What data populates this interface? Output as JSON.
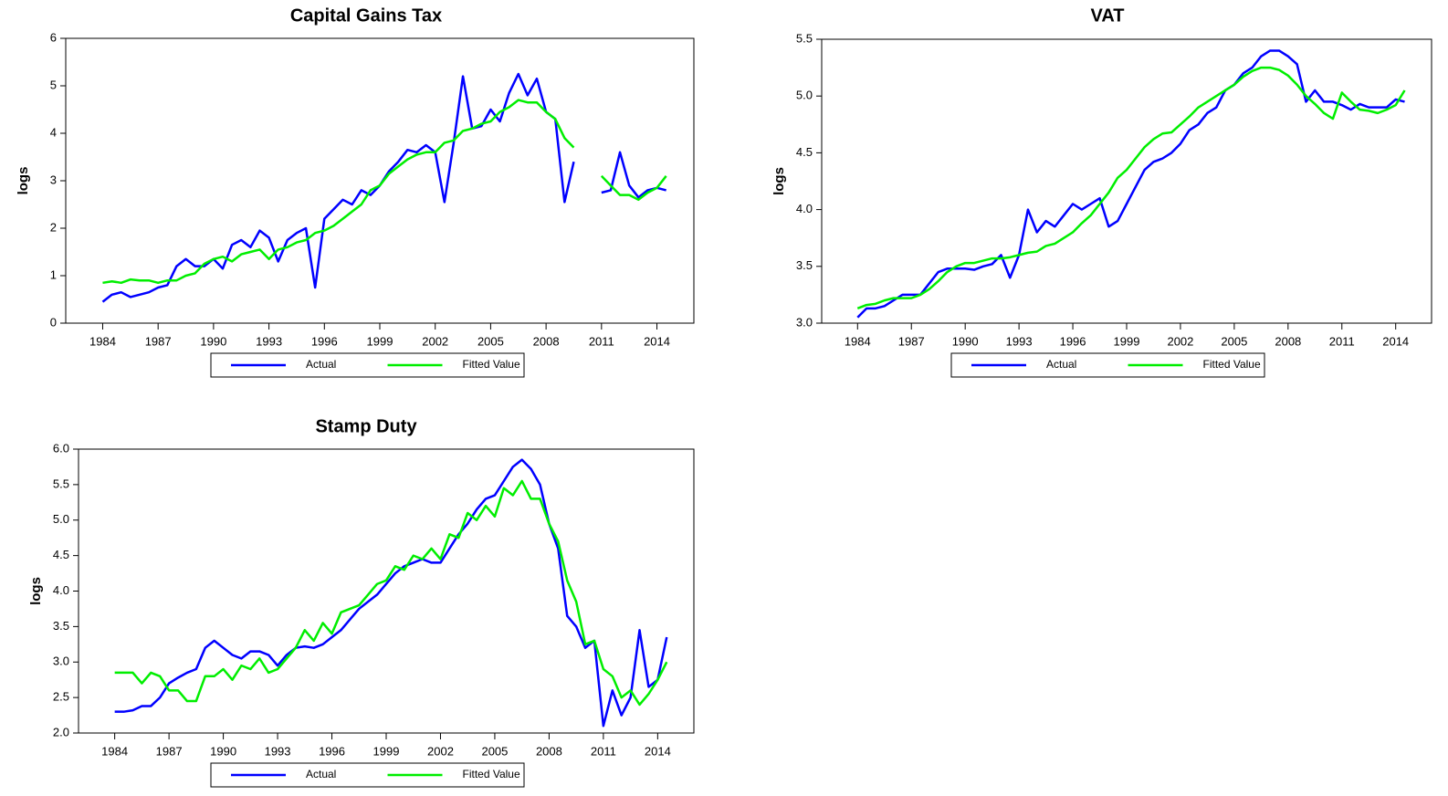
{
  "chart_data": [
    {
      "type": "line",
      "title": "Capital Gains Tax",
      "y_label": "logs",
      "legend": "bottom",
      "x": [
        1984,
        1984.5,
        1985,
        1985.5,
        1986,
        1986.5,
        1987,
        1987.5,
        1988,
        1988.5,
        1989,
        1989.5,
        1990,
        1990.5,
        1991,
        1991.5,
        1992,
        1992.5,
        1993,
        1993.5,
        1994,
        1994.5,
        1995,
        1995.5,
        1996,
        1996.5,
        1997,
        1997.5,
        1998,
        1998.5,
        1999,
        1999.5,
        2000,
        2000.5,
        2001,
        2001.5,
        2002,
        2002.5,
        2003,
        2003.5,
        2004,
        2004.5,
        2005,
        2005.5,
        2006,
        2006.5,
        2007,
        2007.5,
        2008,
        2008.5,
        2009,
        2009.5,
        2010,
        2010.5,
        2011,
        2011.5,
        2012,
        2012.5,
        2013,
        2013.5,
        2014,
        2014.5
      ],
      "series": [
        {
          "name": "Actual",
          "color": "#0000ff",
          "values": [
            0.45,
            0.6,
            0.65,
            0.55,
            0.6,
            0.65,
            0.75,
            0.8,
            1.2,
            1.35,
            1.2,
            1.2,
            1.35,
            1.15,
            1.65,
            1.75,
            1.6,
            1.95,
            1.8,
            1.3,
            1.75,
            1.9,
            2.0,
            0.75,
            2.2,
            2.4,
            2.6,
            2.5,
            2.8,
            2.7,
            2.9,
            3.2,
            3.4,
            3.65,
            3.6,
            3.75,
            3.6,
            2.55,
            3.8,
            5.2,
            4.1,
            4.15,
            4.5,
            4.25,
            4.85,
            5.25,
            4.8,
            5.15,
            4.45,
            4.3,
            2.55,
            3.4,
            null,
            null,
            2.75,
            2.8,
            3.6,
            2.9,
            2.65,
            2.8,
            2.85,
            2.8
          ]
        },
        {
          "name": "Fitted Value",
          "color": "#00ee00",
          "values": [
            0.85,
            0.88,
            0.85,
            0.92,
            0.9,
            0.9,
            0.85,
            0.9,
            0.9,
            1.0,
            1.05,
            1.25,
            1.35,
            1.4,
            1.3,
            1.45,
            1.5,
            1.55,
            1.35,
            1.55,
            1.6,
            1.7,
            1.75,
            1.9,
            1.95,
            2.05,
            2.2,
            2.35,
            2.5,
            2.8,
            2.9,
            3.15,
            3.3,
            3.45,
            3.55,
            3.6,
            3.6,
            3.8,
            3.85,
            4.05,
            4.1,
            4.2,
            4.25,
            4.45,
            4.55,
            4.7,
            4.65,
            4.65,
            4.45,
            4.3,
            3.9,
            3.7,
            null,
            null,
            3.1,
            2.9,
            2.7,
            2.7,
            2.6,
            2.75,
            2.85,
            3.1
          ]
        }
      ],
      "xlim": [
        1982,
        2016
      ],
      "xticks": [
        1984,
        1987,
        1990,
        1993,
        1996,
        1999,
        2002,
        2005,
        2008,
        2011,
        2014
      ],
      "ylim": [
        0,
        6
      ],
      "yticks": [
        0,
        1,
        2,
        3,
        4,
        5,
        6
      ]
    },
    {
      "type": "line",
      "title": "VAT",
      "y_label": "logs",
      "legend": "bottom",
      "x": [
        1984,
        1984.5,
        1985,
        1985.5,
        1986,
        1986.5,
        1987,
        1987.5,
        1988,
        1988.5,
        1989,
        1989.5,
        1990,
        1990.5,
        1991,
        1991.5,
        1992,
        1992.5,
        1993,
        1993.5,
        1994,
        1994.5,
        1995,
        1995.5,
        1996,
        1996.5,
        1997,
        1997.5,
        1998,
        1998.5,
        1999,
        1999.5,
        2000,
        2000.5,
        2001,
        2001.5,
        2002,
        2002.5,
        2003,
        2003.5,
        2004,
        2004.5,
        2005,
        2005.5,
        2006,
        2006.5,
        2007,
        2007.5,
        2008,
        2008.5,
        2009,
        2009.5,
        2010,
        2010.5,
        2011,
        2011.5,
        2012,
        2012.5,
        2013,
        2013.5,
        2014,
        2014.5
      ],
      "series": [
        {
          "name": "Actual",
          "color": "#0000ff",
          "values": [
            3.05,
            3.13,
            3.13,
            3.15,
            3.2,
            3.25,
            3.25,
            3.25,
            3.35,
            3.45,
            3.48,
            3.48,
            3.48,
            3.47,
            3.5,
            3.52,
            3.6,
            3.4,
            3.6,
            4.0,
            3.8,
            3.9,
            3.85,
            3.95,
            4.05,
            4.0,
            4.05,
            4.1,
            3.85,
            3.9,
            4.05,
            4.2,
            4.35,
            4.42,
            4.45,
            4.5,
            4.58,
            4.7,
            4.75,
            4.85,
            4.9,
            5.05,
            5.1,
            5.2,
            5.25,
            5.35,
            5.4,
            5.4,
            5.35,
            5.28,
            4.95,
            5.05,
            4.95,
            4.95,
            4.92,
            4.88,
            4.93,
            4.9,
            4.9,
            4.9,
            4.97,
            4.95
          ]
        },
        {
          "name": "Fitted Value",
          "color": "#00ee00",
          "values": [
            3.13,
            3.16,
            3.17,
            3.2,
            3.22,
            3.22,
            3.22,
            3.25,
            3.3,
            3.37,
            3.45,
            3.5,
            3.53,
            3.53,
            3.55,
            3.57,
            3.57,
            3.58,
            3.6,
            3.62,
            3.63,
            3.68,
            3.7,
            3.75,
            3.8,
            3.88,
            3.95,
            4.05,
            4.15,
            4.28,
            4.35,
            4.45,
            4.55,
            4.62,
            4.67,
            4.68,
            4.75,
            4.82,
            4.9,
            4.95,
            5.0,
            5.05,
            5.1,
            5.17,
            5.22,
            5.25,
            5.25,
            5.23,
            5.18,
            5.1,
            5.0,
            4.93,
            4.85,
            4.8,
            5.03,
            4.95,
            4.88,
            4.87,
            4.85,
            4.88,
            4.92,
            5.05
          ]
        }
      ],
      "xlim": [
        1982,
        2016
      ],
      "xticks": [
        1984,
        1987,
        1990,
        1993,
        1996,
        1999,
        2002,
        2005,
        2008,
        2011,
        2014
      ],
      "ylim": [
        3,
        5.5
      ],
      "yticks": [
        {
          "value": 3,
          "label": "3.0"
        },
        3.5,
        {
          "value": 4,
          "label": "4.0"
        },
        4.5,
        {
          "value": 5,
          "label": "5.0"
        },
        5.5
      ]
    },
    {
      "type": "line",
      "title": "Stamp Duty",
      "y_label": "logs",
      "legend": "bottom",
      "x": [
        1984,
        1984.5,
        1985,
        1985.5,
        1986,
        1986.5,
        1987,
        1987.5,
        1988,
        1988.5,
        1989,
        1989.5,
        1990,
        1990.5,
        1991,
        1991.5,
        1992,
        1992.5,
        1993,
        1993.5,
        1994,
        1994.5,
        1995,
        1995.5,
        1996,
        1996.5,
        1997,
        1997.5,
        1998,
        1998.5,
        1999,
        1999.5,
        2000,
        2000.5,
        2001,
        2001.5,
        2002,
        2002.5,
        2003,
        2003.5,
        2004,
        2004.5,
        2005,
        2005.5,
        2006,
        2006.5,
        2007,
        2007.5,
        2008,
        2008.5,
        2009,
        2009.5,
        2010,
        2010.5,
        2011,
        2011.5,
        2012,
        2012.5,
        2013,
        2013.5,
        2014,
        2014.5
      ],
      "series": [
        {
          "name": "Actual",
          "color": "#0000ff",
          "values": [
            2.3,
            2.3,
            2.32,
            2.38,
            2.38,
            2.5,
            2.7,
            2.78,
            2.85,
            2.9,
            3.2,
            3.3,
            3.2,
            3.1,
            3.05,
            3.15,
            3.15,
            3.1,
            2.95,
            3.1,
            3.2,
            3.22,
            3.2,
            3.25,
            3.35,
            3.45,
            3.6,
            3.75,
            3.85,
            3.95,
            4.1,
            4.25,
            4.35,
            4.4,
            4.45,
            4.4,
            4.4,
            4.6,
            4.8,
            4.95,
            5.15,
            5.3,
            5.35,
            5.55,
            5.75,
            5.85,
            5.72,
            5.5,
            4.95,
            4.6,
            3.65,
            3.5,
            3.2,
            3.3,
            2.1,
            2.6,
            2.25,
            2.5,
            3.45,
            2.65,
            2.75,
            3.35
          ]
        },
        {
          "name": "Fitted Value",
          "color": "#00ee00",
          "values": [
            2.85,
            2.85,
            2.85,
            2.7,
            2.85,
            2.8,
            2.6,
            2.6,
            2.45,
            2.45,
            2.8,
            2.8,
            2.9,
            2.75,
            2.95,
            2.9,
            3.05,
            2.85,
            2.9,
            3.05,
            3.2,
            3.45,
            3.3,
            3.55,
            3.4,
            3.7,
            3.75,
            3.8,
            3.95,
            4.1,
            4.15,
            4.35,
            4.3,
            4.5,
            4.45,
            4.6,
            4.45,
            4.8,
            4.75,
            5.1,
            5.0,
            5.2,
            5.05,
            5.45,
            5.35,
            5.55,
            5.3,
            5.3,
            4.95,
            4.7,
            4.15,
            3.85,
            3.25,
            3.3,
            2.9,
            2.8,
            2.5,
            2.6,
            2.4,
            2.55,
            2.75,
            3.0
          ]
        }
      ],
      "xlim": [
        1982,
        2016
      ],
      "xticks": [
        1984,
        1987,
        1990,
        1993,
        1996,
        1999,
        2002,
        2005,
        2008,
        2011,
        2014
      ],
      "ylim": [
        2,
        6
      ],
      "yticks": [
        {
          "value": 2,
          "label": "2.0"
        },
        2.5,
        {
          "value": 3,
          "label": "3.0"
        },
        3.5,
        {
          "value": 4,
          "label": "4.0"
        },
        4.5,
        {
          "value": 5,
          "label": "5.0"
        },
        5.5,
        {
          "value": 6,
          "label": "6.0"
        }
      ]
    }
  ]
}
